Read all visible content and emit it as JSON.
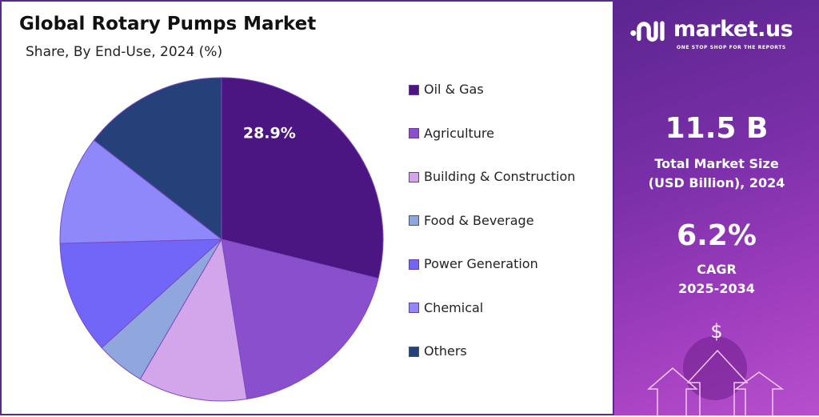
{
  "brand": {
    "name": "market.us",
    "tagline": "ONE STOP SHOP FOR THE REPORTS"
  },
  "stats": {
    "market_size": "11.5 B",
    "market_size_label_1": "Total Market Size",
    "market_size_label_2": "(USD Billion), 2024",
    "cagr": "6.2%",
    "cagr_label_1": "CAGR",
    "cagr_label_2": "2025-2034",
    "currency_symbol": "$"
  },
  "chart_data": {
    "type": "pie",
    "title": "Global Rotary Pumps Market",
    "subtitle": "Share, By End-Use, 2024 (%)",
    "unit": "%",
    "legend_position": "right",
    "start": "top, clockwise",
    "categories": [
      "Oil & Gas",
      "Agriculture",
      "Building  & Construction",
      "Food & Beverage",
      "Power Generation",
      "Chemical",
      "Others"
    ],
    "values": [
      28.9,
      18.6,
      10.9,
      4.9,
      11.3,
      10.9,
      14.5
    ],
    "colors": [
      "#4b1582",
      "#8a4fcc",
      "#d3a6ec",
      "#8fa7dc",
      "#7166f7",
      "#8f88fa",
      "#26417a"
    ],
    "data_labels": [
      "28.9%",
      "",
      "",
      "",
      "",
      "",
      ""
    ]
  }
}
